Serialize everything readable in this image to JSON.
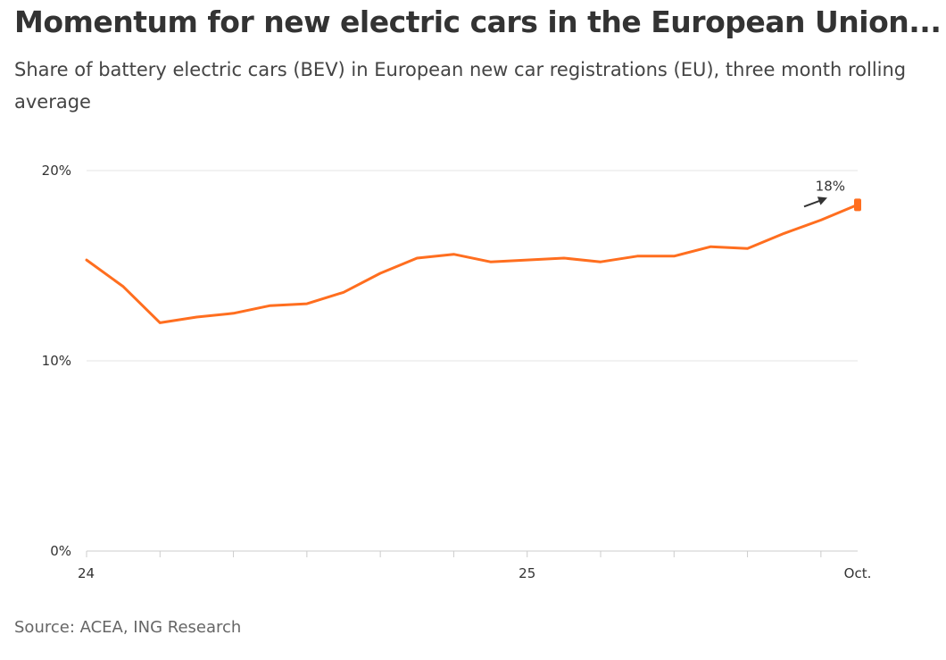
{
  "title": "Momentum for new electric cars in the European Union...",
  "subtitle": "Share of battery electric cars (BEV) in European new car registrations (EU), three month rolling average",
  "source": "Source: ACEA, ING Research",
  "colors": {
    "line": "#FF6E1F",
    "grid": "#E6E6E6",
    "axis": "#CCCCCC",
    "text": "#333333",
    "arrow": "#333333"
  },
  "chart_data": {
    "type": "line",
    "title": "",
    "xlabel": "",
    "ylabel": "",
    "x": [
      "2024-01",
      "2024-02",
      "2024-03",
      "2024-04",
      "2024-05",
      "2024-06",
      "2024-07",
      "2024-08",
      "2024-09",
      "2024-10",
      "2024-11",
      "2024-12",
      "2025-01",
      "2025-02",
      "2025-03",
      "2025-04",
      "2025-05",
      "2025-06",
      "2025-07",
      "2025-08",
      "2025-09",
      "2025-10"
    ],
    "series": [
      {
        "values": [
          15.3,
          13.9,
          12.0,
          12.3,
          12.5,
          12.9,
          13.0,
          13.6,
          14.6,
          15.4,
          15.6,
          15.2,
          15.3,
          15.4,
          15.2,
          15.5,
          15.5,
          16.0,
          15.9,
          16.7,
          17.4,
          18.2
        ]
      }
    ],
    "ylim": [
      0,
      20
    ],
    "y_ticks": [
      {
        "value": 0,
        "label": "0%"
      },
      {
        "value": 10,
        "label": "10%"
      },
      {
        "value": 20,
        "label": "20%"
      }
    ],
    "x_tick_labels": [
      {
        "x": "2024-01",
        "label": "24"
      },
      {
        "x": "2025-01",
        "label": "25"
      },
      {
        "x": "2025-10",
        "label": "Oct."
      }
    ],
    "annotations": [
      {
        "x": "2025-10",
        "text": "18%"
      }
    ],
    "grid": true,
    "legend": "none"
  }
}
